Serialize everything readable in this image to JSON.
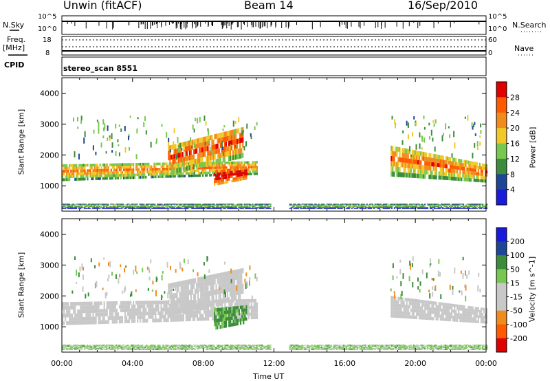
{
  "header": {
    "site": "Unwin (fitACF)",
    "beam": "Beam 14",
    "date": "16/Sep/2010"
  },
  "top_panels": {
    "nsky_label": "N.Sky",
    "nsky_ticks": [
      "10^5",
      "10^0"
    ],
    "nsearch_label": "N.Search",
    "nsearch_ticks": [
      "10^5",
      "10^0"
    ],
    "freq_label": "Freq.",
    "freq_unit": "[MHz]",
    "freq_ticks": [
      "18",
      "8"
    ],
    "nave_label": "Nave",
    "nave_ticks": [
      "60",
      "0"
    ],
    "cpid_label": "CPID",
    "cpid_value": "stereo_scan 8551"
  },
  "chart_data": [
    {
      "type": "heatmap",
      "name": "power",
      "ylabel": "Slant Range [km]",
      "yticks": [
        "4000",
        "3000",
        "2000",
        "1000"
      ],
      "ylim": [
        180,
        4500
      ],
      "xlim": [
        0,
        24
      ],
      "colorbar_label": "Power [dB]",
      "colorbar_ticks": [
        "28",
        "24",
        "20",
        "16",
        "12",
        "8",
        "4"
      ],
      "colorbar_colors": [
        "#e00000",
        "#ff5a00",
        "#f08c1e",
        "#f2c828",
        "#78c850",
        "#3c8c3c",
        "#1e4696",
        "#1a1adc"
      ],
      "bands": [
        {
          "x": [
            0,
            11.0
          ],
          "y0": [
            1150,
            1350
          ],
          "y1": [
            1700,
            1800
          ],
          "value": 14
        },
        {
          "x": [
            6.0,
            10.2
          ],
          "y0": [
            1350,
            1900
          ],
          "y1": [
            2300,
            2900
          ],
          "value": 18
        },
        {
          "x": [
            8.6,
            10.4
          ],
          "y0": [
            1000,
            1200
          ],
          "y1": [
            1500,
            1600
          ],
          "value": 24
        },
        {
          "x": [
            18.6,
            24.0
          ],
          "y0": [
            1300,
            1100
          ],
          "y1": [
            2300,
            1700
          ],
          "value": 16
        },
        {
          "x": [
            0,
            24.0
          ],
          "y0": [
            250,
            250
          ],
          "y1": [
            420,
            420
          ],
          "value": 6
        }
      ]
    },
    {
      "type": "heatmap",
      "name": "velocity",
      "ylabel": "Slant Range [km]",
      "yticks": [
        "4000",
        "3000",
        "2000",
        "1000"
      ],
      "ylim": [
        180,
        4500
      ],
      "xlim": [
        0,
        24
      ],
      "colorbar_label": "Velocity [m s^-1]",
      "colorbar_ticks": [
        "200",
        "100",
        "50",
        "15",
        "-15",
        "-50",
        "-100",
        "-200"
      ],
      "colorbar_colors": [
        "#1a1adc",
        "#1e4696",
        "#3c8c3c",
        "#78c850",
        "#c8c8c8",
        "#c8c8c8",
        "#f08c1e",
        "#ff5a00",
        "#e00000"
      ],
      "bands": [
        {
          "x": [
            0,
            11.0
          ],
          "y0": [
            1050,
            1250
          ],
          "y1": [
            1800,
            1900
          ],
          "value": 0
        },
        {
          "x": [
            6.0,
            10.2
          ],
          "y0": [
            1350,
            1900
          ],
          "y1": [
            2400,
            2900
          ],
          "value": 0
        },
        {
          "x": [
            8.6,
            10.4
          ],
          "y0": [
            900,
            1100
          ],
          "y1": [
            1600,
            1700
          ],
          "value": 40
        },
        {
          "x": [
            18.6,
            24.0
          ],
          "y0": [
            1300,
            1100
          ],
          "y1": [
            2000,
            1600
          ],
          "value": 0
        },
        {
          "x": [
            0,
            24.0
          ],
          "y0": [
            250,
            250
          ],
          "y1": [
            420,
            420
          ],
          "value": 20
        }
      ]
    }
  ],
  "xaxis": {
    "ticks": [
      "00:00",
      "04:00",
      "08:00",
      "12:00",
      "16:00",
      "20:00",
      "00:00"
    ],
    "label": "Time UT"
  }
}
